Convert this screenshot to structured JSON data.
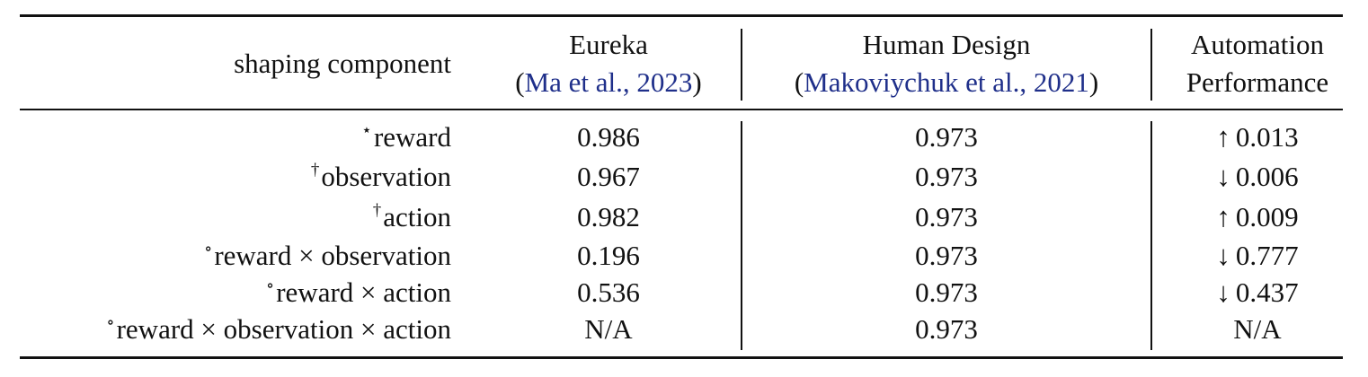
{
  "headers": {
    "component": "shaping component",
    "eureka": {
      "title": "Eureka",
      "cite": "Ma et al., 2023",
      "open": "(",
      "close": ")"
    },
    "human": {
      "title": "Human Design",
      "cite": "Makoviychuk et al., 2021",
      "open": "(",
      "close": ")"
    },
    "automation": {
      "line1": "Automation",
      "line2": "Performance"
    }
  },
  "rows": [
    {
      "mark": "⋆",
      "component": "reward",
      "eureka": "0.986",
      "human": "0.973",
      "arrow": "↑",
      "perf": "0.013"
    },
    {
      "mark": "†",
      "component": "observation",
      "eureka": "0.967",
      "human": "0.973",
      "arrow": "↓",
      "perf": "0.006"
    },
    {
      "mark": "†",
      "component": "action",
      "eureka": "0.982",
      "human": "0.973",
      "arrow": "↑",
      "perf": "0.009"
    },
    {
      "mark": "∘",
      "component": "reward × observation",
      "eureka": "0.196",
      "human": "0.973",
      "arrow": "↓",
      "perf": "0.777"
    },
    {
      "mark": "∘",
      "component": "reward × action",
      "eureka": "0.536",
      "human": "0.973",
      "arrow": "↓",
      "perf": "0.437"
    },
    {
      "mark": "∘",
      "component": "reward × observation × action",
      "eureka": "N/A",
      "human": "0.973",
      "arrow": "",
      "perf": "N/A"
    }
  ],
  "colors": {
    "citation": "#1f2f8a",
    "text": "#111111"
  }
}
